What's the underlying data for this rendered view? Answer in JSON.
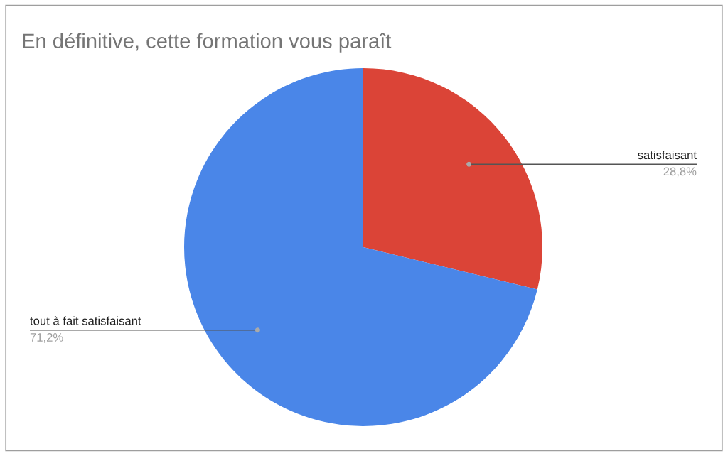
{
  "chart_data": {
    "type": "pie",
    "title": "En définitive, cette formation vous paraît",
    "categories": [
      "satisfaisant",
      "tout à fait satisfaisant"
    ],
    "values": [
      28.8,
      71.2
    ],
    "value_labels": [
      "28,8%",
      "71,2%"
    ],
    "colors": [
      "#db4437",
      "#4a86e8"
    ],
    "legend": false
  }
}
